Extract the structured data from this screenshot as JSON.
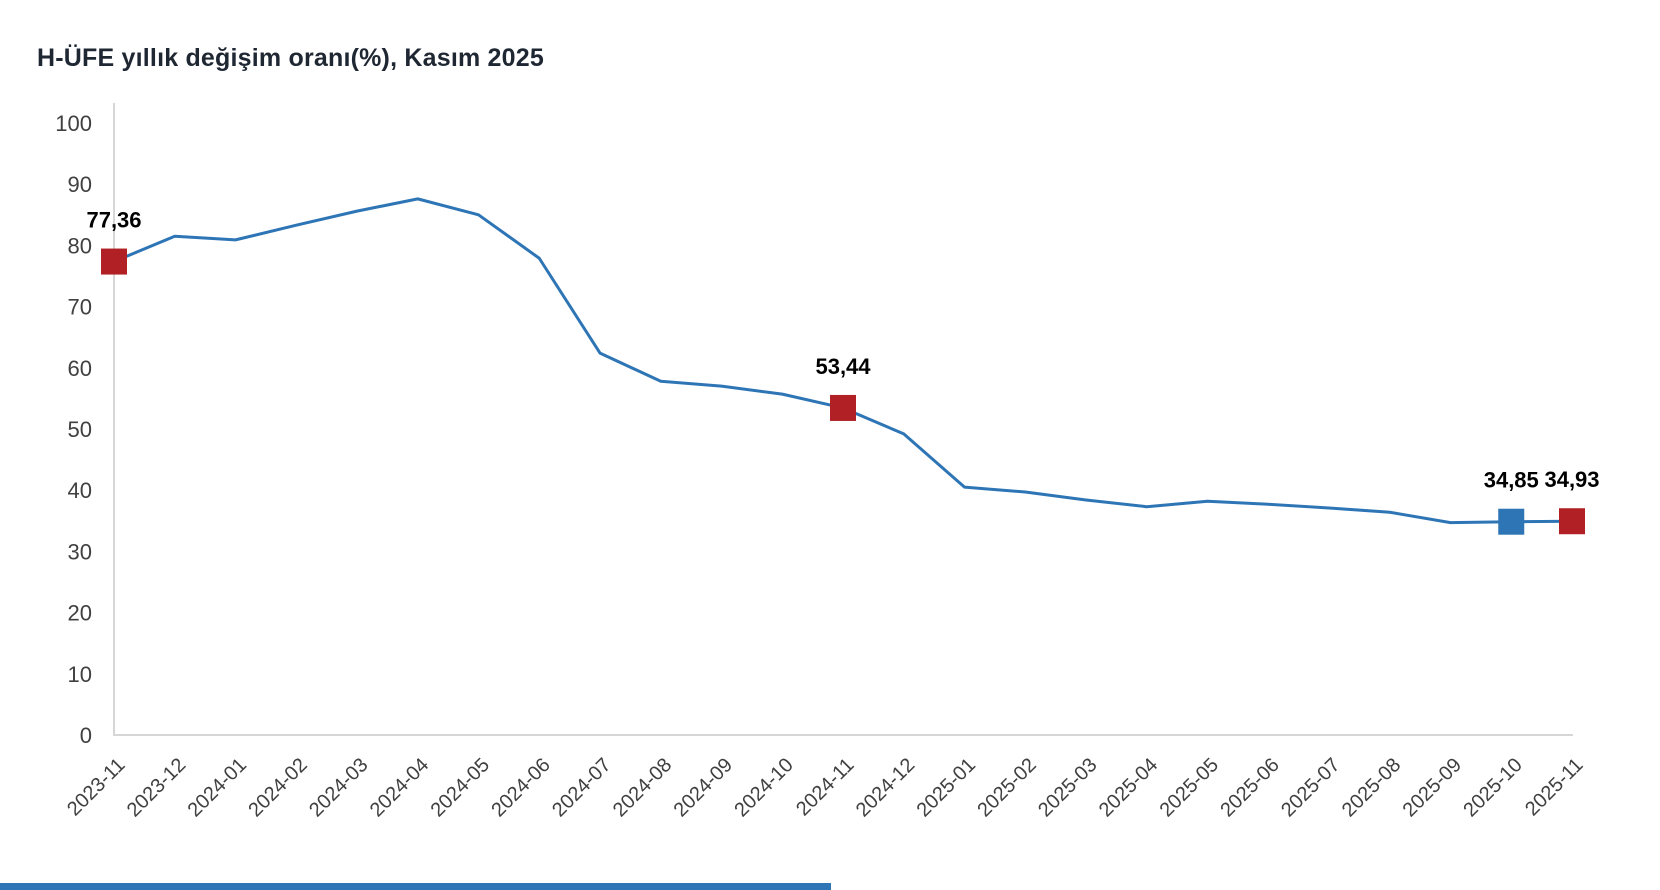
{
  "title": "H-ÜFE yıllık değişim oranı(%), Kasım 2025",
  "colors": {
    "line": "#2E75B6",
    "marker_red": "#B02025",
    "marker_blue": "#2E75B6",
    "title_text": "#1f2733",
    "axis_text": "#404040",
    "axis_line": "#D6D6D6",
    "data_label_text": "#000000",
    "footer_bar": "#2E75B6"
  },
  "chart_data": {
    "type": "line",
    "title": "H-ÜFE yıllık değişim oranı(%), Kasım 2025",
    "xlabel": "",
    "ylabel": "",
    "ylim": [
      0,
      100
    ],
    "y_ticks": [
      0,
      10,
      20,
      30,
      40,
      50,
      60,
      70,
      80,
      90,
      100
    ],
    "grid": false,
    "legend": false,
    "x": [
      "2023-11",
      "2023-12",
      "2024-01",
      "2024-02",
      "2024-03",
      "2024-04",
      "2024-05",
      "2024-06",
      "2024-07",
      "2024-08",
      "2024-09",
      "2024-10",
      "2024-11",
      "2024-12",
      "2025-01",
      "2025-02",
      "2025-03",
      "2025-04",
      "2025-05",
      "2025-06",
      "2025-07",
      "2025-08",
      "2025-09",
      "2025-10",
      "2025-11"
    ],
    "series": [
      {
        "name": "H-ÜFE yıllık değişim oranı (%)",
        "values": [
          77.36,
          81.5,
          80.9,
          83.3,
          85.6,
          87.6,
          85.0,
          77.9,
          62.4,
          57.8,
          57.0,
          55.7,
          53.44,
          49.2,
          40.5,
          39.7,
          38.4,
          37.3,
          38.2,
          37.7,
          37.1,
          36.4,
          34.7,
          34.85,
          34.93
        ]
      }
    ],
    "annotated_points": [
      {
        "x": "2023-11",
        "value": 77.36,
        "label": "77,36",
        "marker": "red"
      },
      {
        "x": "2024-11",
        "value": 53.44,
        "label": "53,44",
        "marker": "red"
      },
      {
        "x": "2025-10",
        "value": 34.85,
        "label": "34,85",
        "marker": "blue"
      },
      {
        "x": "2025-11",
        "value": 34.93,
        "label": "34,93",
        "marker": "red"
      }
    ]
  }
}
